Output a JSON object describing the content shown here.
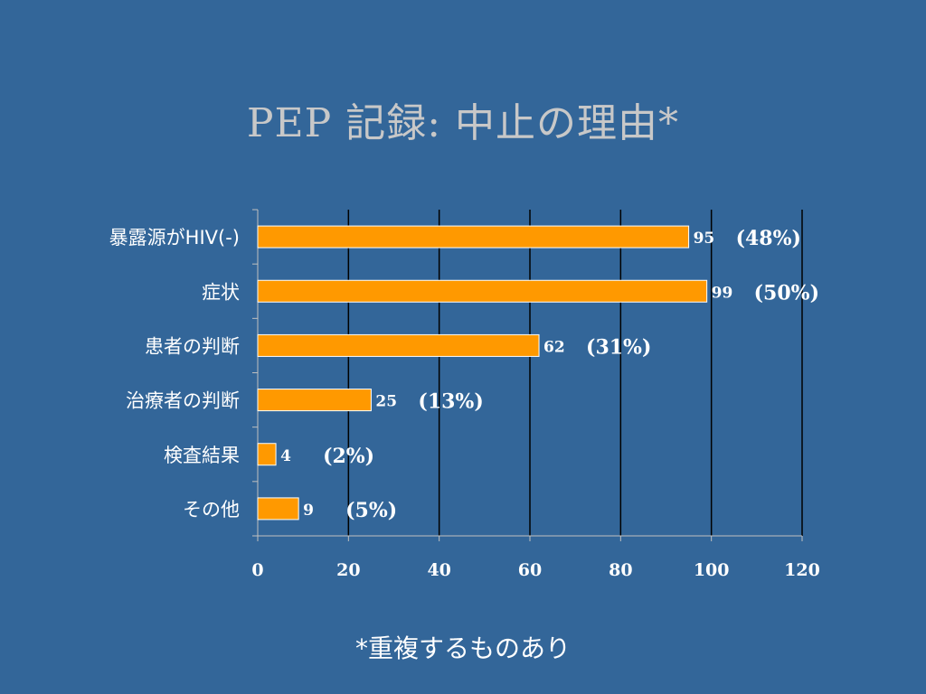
{
  "slide": {
    "title": "PEP 記録: 中止の理由*",
    "footnote": "*重複するものあり"
  },
  "colors": {
    "background": "#336699",
    "bar_fill": "#ff9900",
    "bar_stroke": "#ffffff",
    "title": "#c8c8c8",
    "text": "#ffffff",
    "gridline": "#000000"
  },
  "chart_data": {
    "type": "bar",
    "orientation": "horizontal",
    "title": "PEP 記録: 中止の理由*",
    "xlabel": "",
    "ylabel": "",
    "xlim": [
      0,
      120
    ],
    "xticks": [
      0,
      20,
      40,
      60,
      80,
      100,
      120
    ],
    "grid": "vertical",
    "legend": "none",
    "categories": [
      "暴露源がHIV(-)",
      "症状",
      "患者の判断",
      "治療者の判断",
      "検査結果",
      "その他"
    ],
    "values": [
      95,
      99,
      62,
      25,
      4,
      9
    ],
    "value_labels": [
      "95",
      "99",
      "62",
      "25",
      "4",
      "9"
    ],
    "percent_labels": [
      "(48%)",
      "(50%)",
      "(31%)",
      "(13%)",
      "(2%)",
      "(5%)"
    ]
  }
}
